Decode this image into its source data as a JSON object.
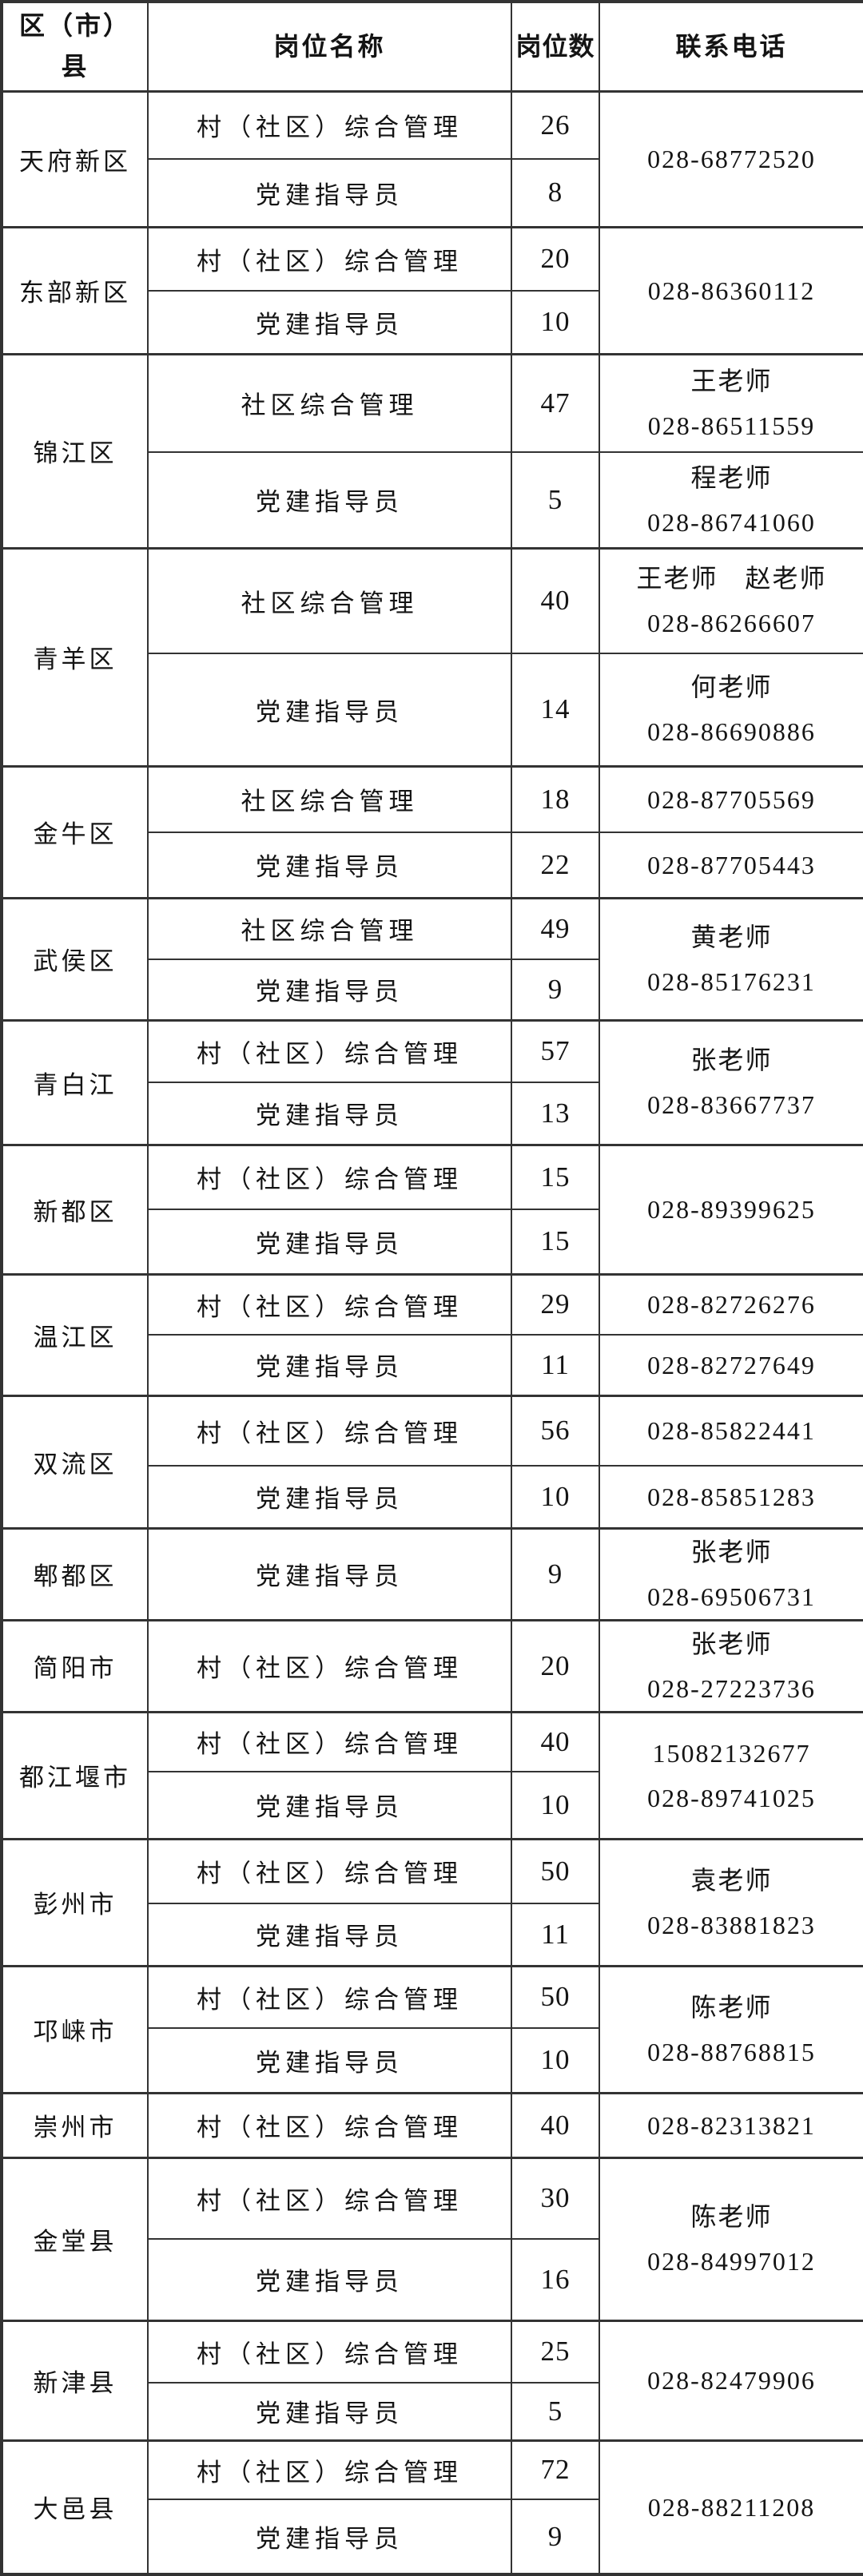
{
  "page": {
    "background_color": "#ffffff",
    "text_color": "#141414",
    "grid_line_color": "#333333"
  },
  "table": {
    "headers": [
      "区（市）\n县",
      "岗位名称",
      "岗位数",
      "联系电话"
    ],
    "districts": [
      {
        "name": "天府新区",
        "jobs": [
          {
            "title": "村（社区）综合管理",
            "count": "26"
          },
          {
            "title": "党建指导员",
            "count": "8"
          }
        ],
        "contacts": [
          {
            "rows": 2,
            "lines": [
              "028-68772520"
            ]
          }
        ]
      },
      {
        "name": "东部新区",
        "jobs": [
          {
            "title": "村（社区）综合管理",
            "count": "20"
          },
          {
            "title": "党建指导员",
            "count": "10"
          }
        ],
        "contacts": [
          {
            "rows": 2,
            "lines": [
              "028-86360112"
            ]
          }
        ]
      },
      {
        "name": "锦江区",
        "jobs": [
          {
            "title": "社区综合管理",
            "count": "47"
          },
          {
            "title": "党建指导员",
            "count": "5"
          }
        ],
        "contacts": [
          {
            "rows": 1,
            "lines": [
              "王老师",
              "028-86511559"
            ]
          },
          {
            "rows": 1,
            "lines": [
              "程老师",
              "028-86741060"
            ]
          }
        ]
      },
      {
        "name": "青羊区",
        "jobs": [
          {
            "title": "社区综合管理",
            "count": "40"
          },
          {
            "title": "党建指导员",
            "count": "14"
          }
        ],
        "contacts": [
          {
            "rows": 1,
            "lines": [
              "王老师　赵老师",
              "028-86266607"
            ]
          },
          {
            "rows": 1,
            "lines": [
              "何老师",
              "028-86690886"
            ]
          }
        ]
      },
      {
        "name": "金牛区",
        "jobs": [
          {
            "title": "社区综合管理",
            "count": "18"
          },
          {
            "title": "党建指导员",
            "count": "22"
          }
        ],
        "contacts": [
          {
            "rows": 1,
            "lines": [
              "028-87705569"
            ]
          },
          {
            "rows": 1,
            "lines": [
              "028-87705443"
            ]
          }
        ]
      },
      {
        "name": "武侯区",
        "jobs": [
          {
            "title": "社区综合管理",
            "count": "49"
          },
          {
            "title": "党建指导员",
            "count": "9"
          }
        ],
        "contacts": [
          {
            "rows": 2,
            "lines": [
              "黄老师",
              "028-85176231"
            ]
          }
        ]
      },
      {
        "name": "青白江",
        "jobs": [
          {
            "title": "村（社区）综合管理",
            "count": "57"
          },
          {
            "title": "党建指导员",
            "count": "13"
          }
        ],
        "contacts": [
          {
            "rows": 2,
            "lines": [
              "张老师",
              "028-83667737"
            ]
          }
        ]
      },
      {
        "name": "新都区",
        "jobs": [
          {
            "title": "村（社区）综合管理",
            "count": "15"
          },
          {
            "title": "党建指导员",
            "count": "15"
          }
        ],
        "contacts": [
          {
            "rows": 2,
            "lines": [
              "028-89399625"
            ]
          }
        ]
      },
      {
        "name": "温江区",
        "jobs": [
          {
            "title": "村（社区）综合管理",
            "count": "29"
          },
          {
            "title": "党建指导员",
            "count": "11"
          }
        ],
        "contacts": [
          {
            "rows": 1,
            "lines": [
              "028-82726276"
            ]
          },
          {
            "rows": 1,
            "lines": [
              "028-82727649"
            ]
          }
        ]
      },
      {
        "name": "双流区",
        "jobs": [
          {
            "title": "村（社区）综合管理",
            "count": "56"
          },
          {
            "title": "党建指导员",
            "count": "10"
          }
        ],
        "contacts": [
          {
            "rows": 1,
            "lines": [
              "028-85822441"
            ]
          },
          {
            "rows": 1,
            "lines": [
              "028-85851283"
            ]
          }
        ]
      },
      {
        "name": "郫都区",
        "jobs": [
          {
            "title": "党建指导员",
            "count": "9"
          }
        ],
        "contacts": [
          {
            "rows": 1,
            "lines": [
              "张老师",
              "028-69506731"
            ]
          }
        ]
      },
      {
        "name": "简阳市",
        "jobs": [
          {
            "title": "村（社区）综合管理",
            "count": "20"
          }
        ],
        "contacts": [
          {
            "rows": 1,
            "lines": [
              "张老师",
              "028-27223736"
            ]
          }
        ]
      },
      {
        "name": "都江堰市",
        "jobs": [
          {
            "title": "村（社区）综合管理",
            "count": "40"
          },
          {
            "title": "党建指导员",
            "count": "10"
          }
        ],
        "contacts": [
          {
            "rows": 2,
            "lines": [
              "15082132677",
              "028-89741025"
            ]
          }
        ]
      },
      {
        "name": "彭州市",
        "jobs": [
          {
            "title": "村（社区）综合管理",
            "count": "50"
          },
          {
            "title": "党建指导员",
            "count": "11"
          }
        ],
        "contacts": [
          {
            "rows": 2,
            "lines": [
              "袁老师",
              "028-83881823"
            ]
          }
        ]
      },
      {
        "name": "邛崃市",
        "jobs": [
          {
            "title": "村（社区）综合管理",
            "count": "50"
          },
          {
            "title": "党建指导员",
            "count": "10"
          }
        ],
        "contacts": [
          {
            "rows": 2,
            "lines": [
              "陈老师",
              "028-88768815"
            ]
          }
        ]
      },
      {
        "name": "崇州市",
        "jobs": [
          {
            "title": "村（社区）综合管理",
            "count": "40"
          }
        ],
        "contacts": [
          {
            "rows": 1,
            "lines": [
              "028-82313821"
            ]
          }
        ]
      },
      {
        "name": "金堂县",
        "jobs": [
          {
            "title": "村（社区）综合管理",
            "count": "30"
          },
          {
            "title": "党建指导员",
            "count": "16"
          }
        ],
        "contacts": [
          {
            "rows": 2,
            "lines": [
              "陈老师",
              "028-84997012"
            ]
          }
        ]
      },
      {
        "name": "新津县",
        "jobs": [
          {
            "title": "村（社区）综合管理",
            "count": "25"
          },
          {
            "title": "党建指导员",
            "count": "5"
          }
        ],
        "contacts": [
          {
            "rows": 2,
            "lines": [
              "028-82479906"
            ]
          }
        ]
      },
      {
        "name": "大邑县",
        "jobs": [
          {
            "title": "村（社区）综合管理",
            "count": "72"
          },
          {
            "title": "党建指导员",
            "count": "9"
          }
        ],
        "contacts": [
          {
            "rows": 2,
            "lines": [
              "028-88211208"
            ]
          }
        ]
      }
    ]
  }
}
